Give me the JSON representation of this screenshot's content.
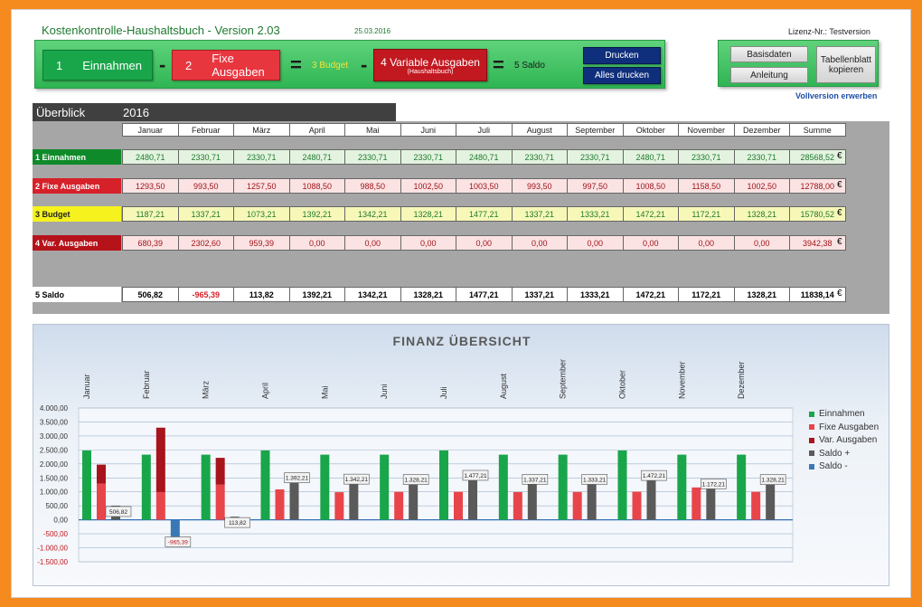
{
  "header": {
    "title": "Kostenkontrolle-Haushaltsbuch  -  Version 2.03",
    "date": "25.03.2016",
    "license": "Lizenz-Nr.: Testversion"
  },
  "formula": {
    "einnahmen": {
      "num": "1",
      "label": "Einnahmen"
    },
    "minus1": "-",
    "fixe": {
      "num": "2",
      "label": "Fixe Ausgaben"
    },
    "equals1": "=",
    "budget": "3 Budget",
    "minus2": "-",
    "variable": {
      "line1": "4  Variable Ausgaben",
      "line2": "(Haushaltsbuch)"
    },
    "equals2": "=",
    "saldo": "5  Saldo"
  },
  "buttons": {
    "drucken": "Drucken",
    "alles_drucken": "Alles drucken",
    "basisdaten": "Basisdaten",
    "anleitung": "Anleitung",
    "tabellenblatt_line1": "Tabellenblatt",
    "tabellenblatt_line2": "kopieren",
    "vollversion": "Vollversion erwerben"
  },
  "overview": {
    "label": "Überblick",
    "year": "2016",
    "months": [
      "Januar",
      "Februar",
      "März",
      "April",
      "Mai",
      "Juni",
      "Juli",
      "August",
      "September",
      "Oktober",
      "November",
      "Dezember",
      "Summe"
    ],
    "currency": "€",
    "rows": [
      {
        "label": "1  Einnahmen",
        "values": [
          "2480,71",
          "2330,71",
          "2330,71",
          "2480,71",
          "2330,71",
          "2330,71",
          "2480,71",
          "2330,71",
          "2330,71",
          "2480,71",
          "2330,71",
          "2330,71",
          "28568,52"
        ]
      },
      {
        "label": "2  Fixe Ausgaben",
        "values": [
          "1293,50",
          "993,50",
          "1257,50",
          "1088,50",
          "988,50",
          "1002,50",
          "1003,50",
          "993,50",
          "997,50",
          "1008,50",
          "1158,50",
          "1002,50",
          "12788,00"
        ]
      },
      {
        "label": "3  Budget",
        "values": [
          "1187,21",
          "1337,21",
          "1073,21",
          "1392,21",
          "1342,21",
          "1328,21",
          "1477,21",
          "1337,21",
          "1333,21",
          "1472,21",
          "1172,21",
          "1328,21",
          "15780,52"
        ]
      },
      {
        "label": "4  Var. Ausgaben",
        "values": [
          "680,39",
          "2302,60",
          "959,39",
          "0,00",
          "0,00",
          "0,00",
          "0,00",
          "0,00",
          "0,00",
          "0,00",
          "0,00",
          "0,00",
          "3942,38"
        ]
      },
      {
        "label": "5  Saldo",
        "values": [
          "506,82",
          "-965,39",
          "113,82",
          "1392,21",
          "1342,21",
          "1328,21",
          "1477,21",
          "1337,21",
          "1333,21",
          "1472,21",
          "1172,21",
          "1328,21",
          "11838,14"
        ]
      }
    ]
  },
  "colors": {
    "einnahmen": "#19a64a",
    "fixe": "#e8454b",
    "variable": "#a8141b",
    "saldo_plus": "#5a5a5a",
    "saldo_minus": "#3a78b5"
  },
  "chart_data": {
    "type": "bar",
    "title": "FINANZ  ÜBERSICHT",
    "categories": [
      "Januar",
      "Februar",
      "März",
      "April",
      "Mai",
      "Juni",
      "Juli",
      "August",
      "September",
      "Oktober",
      "November",
      "Dezember"
    ],
    "series": [
      {
        "name": "Einnahmen",
        "values": [
          2480.71,
          2330.71,
          2330.71,
          2480.71,
          2330.71,
          2330.71,
          2480.71,
          2330.71,
          2330.71,
          2480.71,
          2330.71,
          2330.71
        ]
      },
      {
        "name": "Fixe Ausgaben",
        "values": [
          1293.5,
          993.5,
          1257.5,
          1088.5,
          988.5,
          1002.5,
          1003.5,
          993.5,
          997.5,
          1008.5,
          1158.5,
          1002.5
        ]
      },
      {
        "name": "Var. Ausgaben",
        "values": [
          680.39,
          2302.6,
          959.39,
          0,
          0,
          0,
          0,
          0,
          0,
          0,
          0,
          0
        ]
      },
      {
        "name": "Saldo +",
        "values": [
          506.82,
          0,
          113.82,
          1392.21,
          1342.21,
          1328.21,
          1477.21,
          1337.21,
          1333.21,
          1472.21,
          1172.21,
          1328.21
        ]
      },
      {
        "name": "Saldo -",
        "values": [
          0,
          -965.39,
          0,
          0,
          0,
          0,
          0,
          0,
          0,
          0,
          0,
          0
        ]
      }
    ],
    "data_labels": [
      "506,82",
      "-965,39",
      "113,82",
      "1.392,21",
      "1.342,21",
      "1.328,21",
      "1.477,21",
      "1.337,21",
      "1.333,21",
      "1.472,21",
      "1.172,21",
      "1.328,21"
    ],
    "ytick_labels": [
      "4.000,00",
      "3.500,00",
      "3.000,00",
      "2.500,00",
      "2.000,00",
      "1.500,00",
      "1.000,00",
      "500,00",
      "0,00",
      "-500,00",
      "-1.000,00",
      "-1.500,00"
    ],
    "ylim": [
      -1500,
      4000
    ],
    "legend_position": "right",
    "grid": true
  }
}
